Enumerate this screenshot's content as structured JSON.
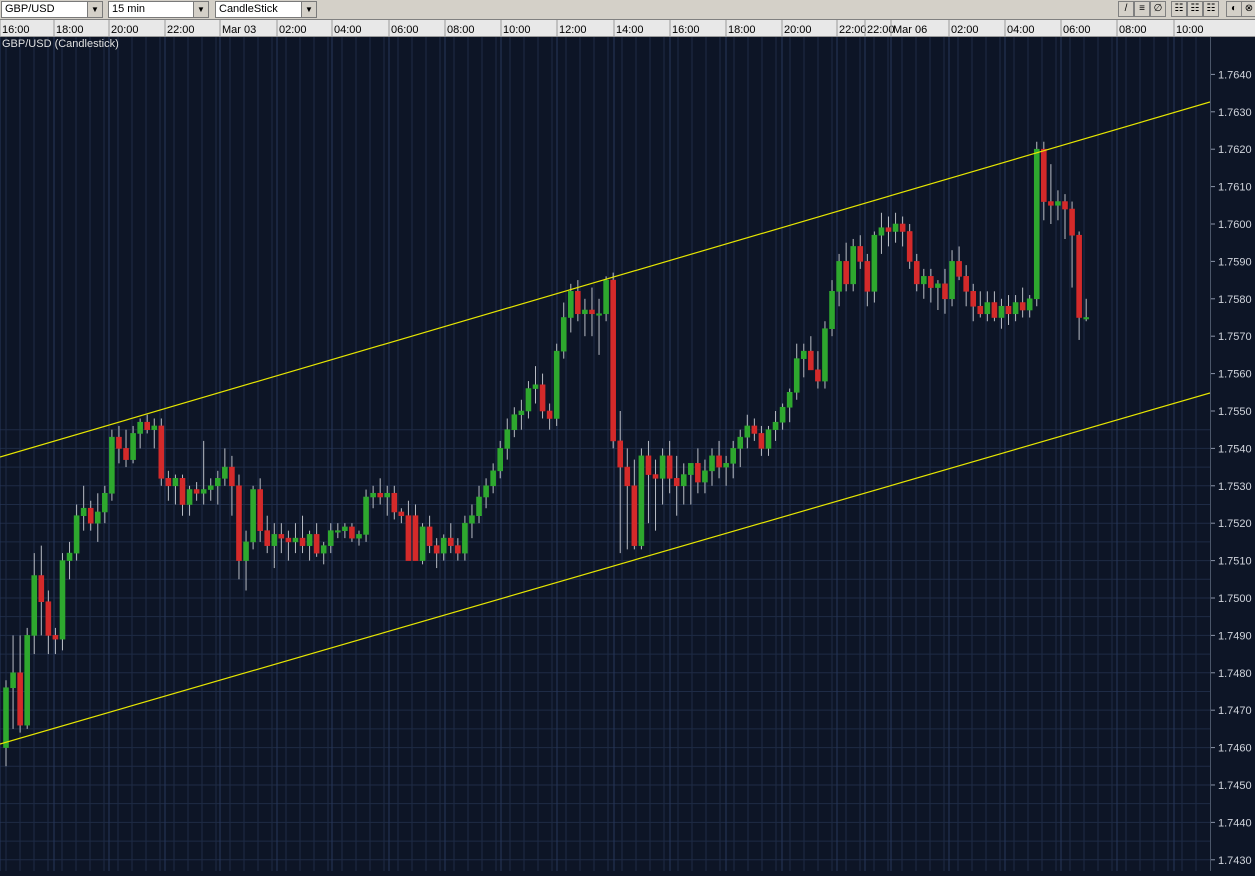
{
  "toolbar": {
    "symbol": "GBP/USD",
    "interval": "15 min",
    "chart_type": "CandleStick",
    "buttons": [
      {
        "name": "draw-line-icon",
        "glyph": "/"
      },
      {
        "name": "horizontal-line-icon",
        "glyph": "≡"
      },
      {
        "name": "fibonacci-icon",
        "glyph": "∅"
      },
      {
        "name": "grid-small-icon",
        "glyph": "☷"
      },
      {
        "name": "grid-medium-icon",
        "glyph": "☷"
      },
      {
        "name": "grid-large-icon",
        "glyph": "☷"
      },
      {
        "name": "settings-icon",
        "glyph": "◐"
      },
      {
        "name": "close-chart-icon",
        "glyph": "⊗"
      }
    ]
  },
  "chart_title": "GBP/USD (Candlestick)",
  "colors": {
    "bull": "#2ea82e",
    "bear": "#d42a2a",
    "channel": "#e6e600",
    "grid": "#1e2b45",
    "background": "#0d1526"
  },
  "chart_data": {
    "type": "candlestick",
    "title": "GBP/USD (Candlestick)",
    "interval": "15 min",
    "time_labels": [
      "16:00",
      "18:00",
      "20:00",
      "22:00",
      "Mar 03",
      "02:00",
      "04:00",
      "06:00",
      "08:00",
      "10:00",
      "12:00",
      "14:00",
      "16:00",
      "18:00",
      "20:00",
      "22:00",
      "22:00",
      "Mar 06",
      "02:00",
      "04:00",
      "06:00",
      "08:00",
      "10:00"
    ],
    "price_ticks": [
      "1.7640",
      "1.7630",
      "1.7620",
      "1.7610",
      "1.7600",
      "1.7590",
      "1.7580",
      "1.7570",
      "1.7560",
      "1.7550",
      "1.7540",
      "1.7530",
      "1.7520",
      "1.7510",
      "1.7500",
      "1.7490",
      "1.7480",
      "1.7470",
      "1.7460",
      "1.7450",
      "1.7440",
      "1.7430"
    ],
    "ylim": [
      1.7427,
      1.765
    ],
    "grid": true,
    "candles": [
      [
        1.746,
        1.7478,
        1.7455,
        1.7476
      ],
      [
        1.7476,
        1.749,
        1.7465,
        1.748
      ],
      [
        1.748,
        1.749,
        1.7464,
        1.7466
      ],
      [
        1.7466,
        1.7492,
        1.7465,
        1.749
      ],
      [
        1.749,
        1.7512,
        1.7485,
        1.7506
      ],
      [
        1.7506,
        1.7514,
        1.749,
        1.7499
      ],
      [
        1.7499,
        1.7502,
        1.7485,
        1.749
      ],
      [
        1.749,
        1.7492,
        1.7485,
        1.7489
      ],
      [
        1.7489,
        1.7512,
        1.7486,
        1.751
      ],
      [
        1.751,
        1.7515,
        1.7505,
        1.7512
      ],
      [
        1.7512,
        1.7525,
        1.751,
        1.7522
      ],
      [
        1.7522,
        1.753,
        1.7518,
        1.7524
      ],
      [
        1.7524,
        1.7526,
        1.7518,
        1.752
      ],
      [
        1.752,
        1.7528,
        1.7515,
        1.7523
      ],
      [
        1.7523,
        1.753,
        1.752,
        1.7528
      ],
      [
        1.7528,
        1.7545,
        1.7526,
        1.7543
      ],
      [
        1.7543,
        1.7546,
        1.7536,
        1.754
      ],
      [
        1.754,
        1.7545,
        1.7535,
        1.7537
      ],
      [
        1.7537,
        1.7546,
        1.7536,
        1.7544
      ],
      [
        1.7544,
        1.7548,
        1.754,
        1.7547
      ],
      [
        1.7547,
        1.7549,
        1.7544,
        1.7545
      ],
      [
        1.7545,
        1.7548,
        1.754,
        1.7546
      ],
      [
        1.7546,
        1.7548,
        1.753,
        1.7532
      ],
      [
        1.7532,
        1.7534,
        1.7526,
        1.753
      ],
      [
        1.753,
        1.7533,
        1.7525,
        1.7532
      ],
      [
        1.7532,
        1.7533,
        1.7522,
        1.7525
      ],
      [
        1.7525,
        1.753,
        1.7522,
        1.7529
      ],
      [
        1.7529,
        1.7531,
        1.7526,
        1.7528
      ],
      [
        1.7528,
        1.7542,
        1.7525,
        1.7529
      ],
      [
        1.7529,
        1.7532,
        1.7526,
        1.753
      ],
      [
        1.753,
        1.7534,
        1.7525,
        1.7532
      ],
      [
        1.7532,
        1.754,
        1.753,
        1.7535
      ],
      [
        1.7535,
        1.7538,
        1.7522,
        1.753
      ],
      [
        1.753,
        1.7533,
        1.7505,
        1.751
      ],
      [
        1.751,
        1.7518,
        1.7502,
        1.7515
      ],
      [
        1.7515,
        1.753,
        1.7513,
        1.7529
      ],
      [
        1.7529,
        1.7532,
        1.7515,
        1.7518
      ],
      [
        1.7518,
        1.7522,
        1.7512,
        1.7514
      ],
      [
        1.7514,
        1.752,
        1.7508,
        1.7517
      ],
      [
        1.7517,
        1.752,
        1.7512,
        1.7516
      ],
      [
        1.7516,
        1.7518,
        1.751,
        1.7515
      ],
      [
        1.7515,
        1.752,
        1.7512,
        1.7516
      ],
      [
        1.7516,
        1.7522,
        1.7512,
        1.7514
      ],
      [
        1.7514,
        1.7518,
        1.751,
        1.7517
      ],
      [
        1.7517,
        1.752,
        1.7511,
        1.7512
      ],
      [
        1.7512,
        1.7515,
        1.7509,
        1.7514
      ],
      [
        1.7514,
        1.752,
        1.7512,
        1.7518
      ],
      [
        1.7518,
        1.752,
        1.7516,
        1.7518
      ],
      [
        1.7518,
        1.752,
        1.7516,
        1.7519
      ],
      [
        1.7519,
        1.752,
        1.7515,
        1.7516
      ],
      [
        1.7516,
        1.7518,
        1.7514,
        1.7517
      ],
      [
        1.7517,
        1.7529,
        1.7515,
        1.7527
      ],
      [
        1.7527,
        1.753,
        1.7524,
        1.7528
      ],
      [
        1.7528,
        1.7532,
        1.7525,
        1.7527
      ],
      [
        1.7527,
        1.753,
        1.7522,
        1.7528
      ],
      [
        1.7528,
        1.753,
        1.7521,
        1.7523
      ],
      [
        1.7523,
        1.7524,
        1.752,
        1.7522
      ],
      [
        1.7522,
        1.7526,
        1.7512,
        1.751
      ],
      [
        1.7522,
        1.7525,
        1.751,
        1.751
      ],
      [
        1.751,
        1.752,
        1.7509,
        1.7519
      ],
      [
        1.7519,
        1.7522,
        1.7512,
        1.7514
      ],
      [
        1.7514,
        1.7516,
        1.7508,
        1.7512
      ],
      [
        1.7512,
        1.7517,
        1.751,
        1.7516
      ],
      [
        1.7516,
        1.752,
        1.7512,
        1.7514
      ],
      [
        1.7514,
        1.7516,
        1.751,
        1.7512
      ],
      [
        1.7512,
        1.7522,
        1.751,
        1.752
      ],
      [
        1.752,
        1.7525,
        1.7516,
        1.7522
      ],
      [
        1.7522,
        1.753,
        1.752,
        1.7527
      ],
      [
        1.7527,
        1.7532,
        1.7524,
        1.753
      ],
      [
        1.753,
        1.7536,
        1.7528,
        1.7534
      ],
      [
        1.7534,
        1.7542,
        1.7532,
        1.754
      ],
      [
        1.754,
        1.7548,
        1.7537,
        1.7545
      ],
      [
        1.7545,
        1.7551,
        1.7543,
        1.7549
      ],
      [
        1.7549,
        1.7553,
        1.7545,
        1.755
      ],
      [
        1.755,
        1.7558,
        1.7548,
        1.7556
      ],
      [
        1.7556,
        1.7562,
        1.7552,
        1.7557
      ],
      [
        1.7557,
        1.756,
        1.7548,
        1.755
      ],
      [
        1.755,
        1.7552,
        1.7545,
        1.7548
      ],
      [
        1.7548,
        1.7568,
        1.7546,
        1.7566
      ],
      [
        1.7566,
        1.7579,
        1.7564,
        1.7575
      ],
      [
        1.7575,
        1.7584,
        1.7571,
        1.7582
      ],
      [
        1.7582,
        1.7585,
        1.7574,
        1.7576
      ],
      [
        1.7576,
        1.758,
        1.757,
        1.7577
      ],
      [
        1.7577,
        1.7583,
        1.757,
        1.7576
      ],
      [
        1.7576,
        1.758,
        1.7565,
        1.7576
      ],
      [
        1.7576,
        1.7586,
        1.7574,
        1.7585
      ],
      [
        1.7585,
        1.7587,
        1.754,
        1.7542
      ],
      [
        1.7542,
        1.755,
        1.7512,
        1.7535
      ],
      [
        1.7535,
        1.754,
        1.7513,
        1.753
      ],
      [
        1.753,
        1.7537,
        1.7513,
        1.7514
      ],
      [
        1.7514,
        1.754,
        1.7513,
        1.7538
      ],
      [
        1.7538,
        1.7542,
        1.752,
        1.7533
      ],
      [
        1.7533,
        1.7537,
        1.7518,
        1.7532
      ],
      [
        1.7532,
        1.754,
        1.7525,
        1.7538
      ],
      [
        1.7538,
        1.7542,
        1.7528,
        1.7532
      ],
      [
        1.7532,
        1.7538,
        1.7522,
        1.753
      ],
      [
        1.753,
        1.7536,
        1.7525,
        1.7533
      ],
      [
        1.7533,
        1.7536,
        1.7525,
        1.7536
      ],
      [
        1.7536,
        1.754,
        1.7528,
        1.7531
      ],
      [
        1.7531,
        1.7537,
        1.7528,
        1.7534
      ],
      [
        1.7534,
        1.754,
        1.753,
        1.7538
      ],
      [
        1.7538,
        1.7542,
        1.7532,
        1.7535
      ],
      [
        1.7535,
        1.7538,
        1.753,
        1.7536
      ],
      [
        1.7536,
        1.7542,
        1.7532,
        1.754
      ],
      [
        1.754,
        1.7545,
        1.7535,
        1.7543
      ],
      [
        1.7543,
        1.7549,
        1.754,
        1.7546
      ],
      [
        1.7546,
        1.7548,
        1.7542,
        1.7544
      ],
      [
        1.7544,
        1.7546,
        1.7538,
        1.754
      ],
      [
        1.754,
        1.7546,
        1.7538,
        1.7545
      ],
      [
        1.7545,
        1.755,
        1.7542,
        1.7547
      ],
      [
        1.7547,
        1.7552,
        1.7545,
        1.7551
      ],
      [
        1.7551,
        1.7556,
        1.7547,
        1.7555
      ],
      [
        1.7555,
        1.7568,
        1.7553,
        1.7564
      ],
      [
        1.7564,
        1.7568,
        1.7559,
        1.7566
      ],
      [
        1.7566,
        1.757,
        1.7562,
        1.7561
      ],
      [
        1.7561,
        1.7566,
        1.7556,
        1.7558
      ],
      [
        1.7558,
        1.7574,
        1.7556,
        1.7572
      ],
      [
        1.7572,
        1.7585,
        1.757,
        1.7582
      ],
      [
        1.7582,
        1.7592,
        1.7578,
        1.759
      ],
      [
        1.759,
        1.7595,
        1.7582,
        1.7584
      ],
      [
        1.7584,
        1.7596,
        1.7582,
        1.7594
      ],
      [
        1.7594,
        1.7597,
        1.7588,
        1.759
      ],
      [
        1.759,
        1.7592,
        1.7578,
        1.7582
      ],
      [
        1.7582,
        1.7598,
        1.7579,
        1.7597
      ],
      [
        1.7597,
        1.7603,
        1.7592,
        1.7599
      ],
      [
        1.7599,
        1.7602,
        1.7594,
        1.7598
      ],
      [
        1.7598,
        1.7603,
        1.7595,
        1.76
      ],
      [
        1.76,
        1.7602,
        1.7594,
        1.7598
      ],
      [
        1.7598,
        1.76,
        1.7588,
        1.759
      ],
      [
        1.759,
        1.7592,
        1.7582,
        1.7584
      ],
      [
        1.7584,
        1.7588,
        1.758,
        1.7586
      ],
      [
        1.7586,
        1.7588,
        1.7579,
        1.7583
      ],
      [
        1.7583,
        1.7585,
        1.7577,
        1.7584
      ],
      [
        1.7584,
        1.7588,
        1.7576,
        1.758
      ],
      [
        1.758,
        1.7593,
        1.7578,
        1.759
      ],
      [
        1.759,
        1.7594,
        1.7585,
        1.7586
      ],
      [
        1.7586,
        1.7589,
        1.7578,
        1.7582
      ],
      [
        1.7582,
        1.7584,
        1.7574,
        1.7578
      ],
      [
        1.7578,
        1.7582,
        1.7575,
        1.7576
      ],
      [
        1.7576,
        1.7582,
        1.7574,
        1.7579
      ],
      [
        1.7579,
        1.7582,
        1.7574,
        1.7575
      ],
      [
        1.7575,
        1.758,
        1.7572,
        1.7578
      ],
      [
        1.7578,
        1.7581,
        1.7573,
        1.7576
      ],
      [
        1.7576,
        1.7581,
        1.7574,
        1.7579
      ],
      [
        1.7579,
        1.7583,
        1.7575,
        1.7577
      ],
      [
        1.7577,
        1.7581,
        1.7575,
        1.758
      ],
      [
        1.758,
        1.7622,
        1.7578,
        1.762
      ],
      [
        1.762,
        1.7622,
        1.7601,
        1.7606
      ],
      [
        1.7606,
        1.7616,
        1.76,
        1.7605
      ],
      [
        1.7605,
        1.7609,
        1.7601,
        1.7606
      ],
      [
        1.7606,
        1.7608,
        1.7596,
        1.7604
      ],
      [
        1.7604,
        1.7606,
        1.7583,
        1.7597
      ],
      [
        1.7597,
        1.7598,
        1.7569,
        1.7575
      ],
      [
        1.7575,
        1.758,
        1.7574,
        1.7575
      ]
    ]
  }
}
